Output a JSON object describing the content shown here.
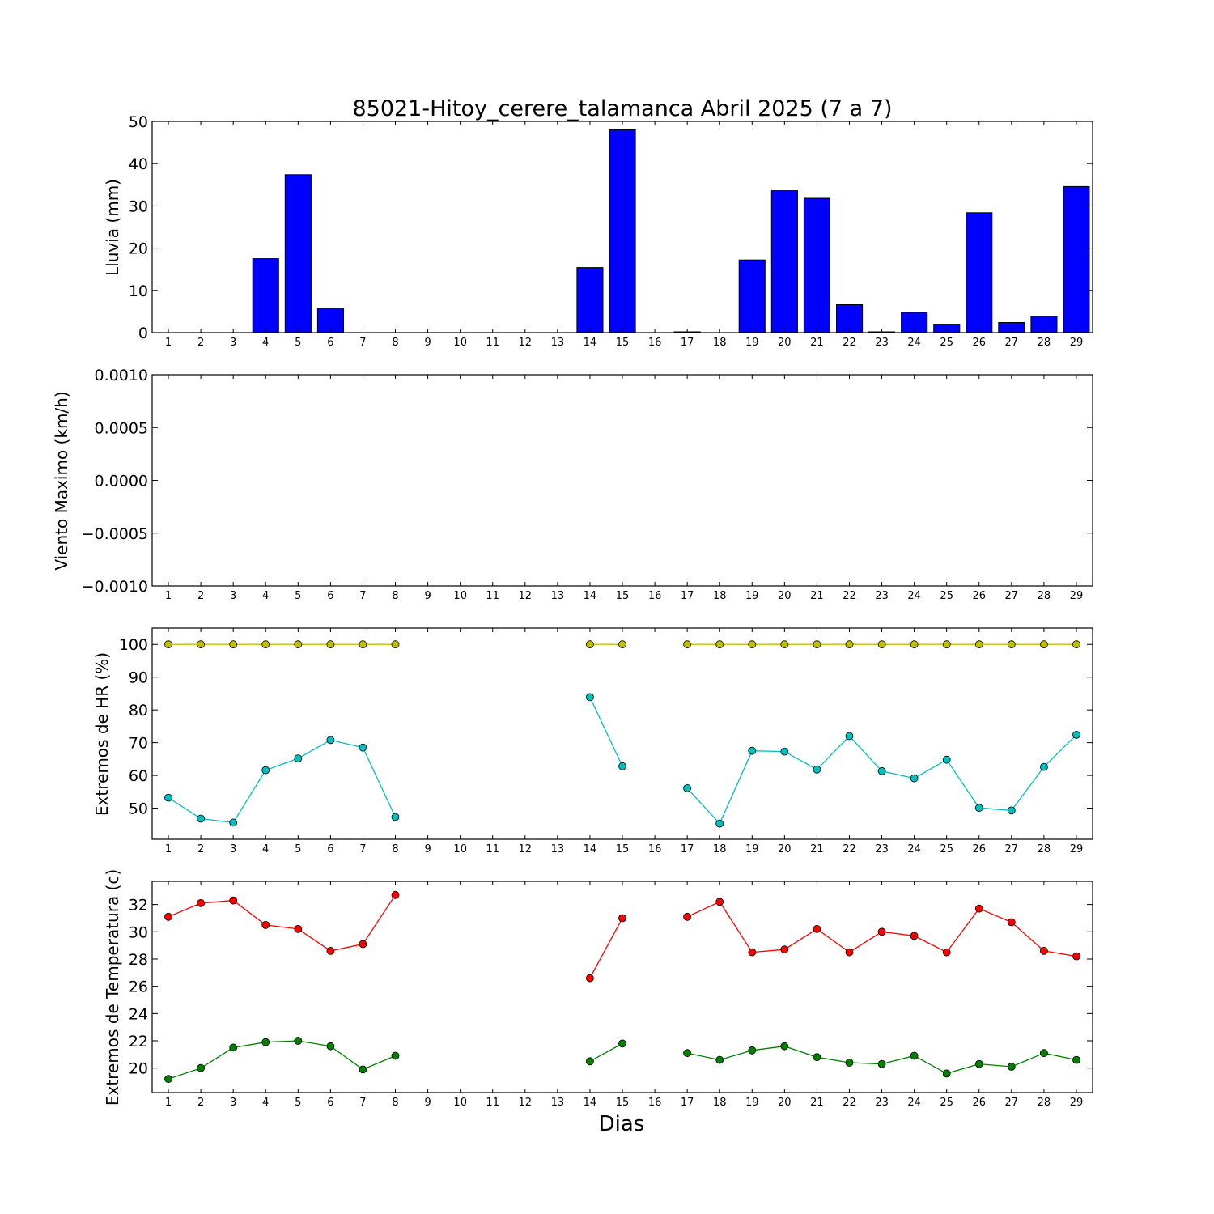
{
  "chart_data": [
    {
      "type": "bar",
      "title": "85021-Hitoy_cerere_talamanca Abril 2025  (7 a 7)",
      "ylabel": "Lluvia (mm)",
      "xlabel": "",
      "categories": [
        "1",
        "2",
        "3",
        "4",
        "5",
        "6",
        "7",
        "8",
        "9",
        "10",
        "11",
        "12",
        "13",
        "14",
        "15",
        "16",
        "17",
        "18",
        "19",
        "20",
        "21",
        "22",
        "23",
        "24",
        "25",
        "26",
        "27",
        "28",
        "29"
      ],
      "values": [
        0,
        0,
        0,
        17.5,
        37.4,
        5.8,
        0,
        0,
        0,
        0,
        0,
        0,
        0,
        15.4,
        48.0,
        0,
        0.2,
        0,
        17.2,
        33.6,
        31.8,
        6.6,
        0.2,
        4.8,
        2.0,
        28.4,
        2.4,
        3.9,
        34.6
      ],
      "ylim": [
        0,
        50
      ],
      "yticks": [
        "0",
        "10",
        "20",
        "30",
        "40",
        "50"
      ],
      "color": "#0000ff",
      "grid": false
    },
    {
      "type": "line",
      "title": "",
      "ylabel": "Viento Maximo (km/h)",
      "xlabel": "",
      "categories": [
        "1",
        "2",
        "3",
        "4",
        "5",
        "6",
        "7",
        "8",
        "9",
        "10",
        "11",
        "12",
        "13",
        "14",
        "15",
        "16",
        "17",
        "18",
        "19",
        "20",
        "21",
        "22",
        "23",
        "24",
        "25",
        "26",
        "27",
        "28",
        "29"
      ],
      "series": [],
      "ylim": [
        -0.001,
        0.001
      ],
      "yticks": [
        "−0.0010",
        "−0.0005",
        "0.0000",
        "0.0005",
        "0.0010"
      ],
      "grid": false
    },
    {
      "type": "line",
      "title": "",
      "ylabel": "Extremos de HR (%)",
      "xlabel": "",
      "categories": [
        "1",
        "2",
        "3",
        "4",
        "5",
        "6",
        "7",
        "8",
        "9",
        "10",
        "11",
        "12",
        "13",
        "14",
        "15",
        "16",
        "17",
        "18",
        "19",
        "20",
        "21",
        "22",
        "23",
        "24",
        "25",
        "26",
        "27",
        "28",
        "29"
      ],
      "series": [
        {
          "color": "#bfbf00",
          "values": [
            100,
            100,
            100,
            100,
            100,
            100,
            100,
            100,
            null,
            null,
            null,
            null,
            null,
            100,
            100,
            null,
            100,
            100,
            100,
            100,
            100,
            100,
            100,
            100,
            100,
            100,
            100,
            100,
            100
          ]
        },
        {
          "color": "#00bfbf",
          "values": [
            53.2,
            46.8,
            45.6,
            61.6,
            65.2,
            70.8,
            68.5,
            47.3,
            null,
            null,
            null,
            null,
            null,
            83.9,
            62.8,
            null,
            56.1,
            45.3,
            67.5,
            67.3,
            61.8,
            72.0,
            61.3,
            59.1,
            64.8,
            50.1,
            49.3,
            62.6,
            72.4
          ]
        }
      ],
      "ylim": [
        40.5,
        105
      ],
      "yticks": [
        "50",
        "60",
        "70",
        "80",
        "90",
        "100"
      ],
      "grid": false
    },
    {
      "type": "line",
      "title": "",
      "ylabel": "Extremos de Temperatura (c)",
      "xlabel": "Dias",
      "categories": [
        "1",
        "2",
        "3",
        "4",
        "5",
        "6",
        "7",
        "8",
        "9",
        "10",
        "11",
        "12",
        "13",
        "14",
        "15",
        "16",
        "17",
        "18",
        "19",
        "20",
        "21",
        "22",
        "23",
        "24",
        "25",
        "26",
        "27",
        "28",
        "29"
      ],
      "series": [
        {
          "color": "#ff0000",
          "values": [
            31.1,
            32.1,
            32.3,
            30.5,
            30.2,
            28.6,
            29.1,
            32.7,
            null,
            null,
            null,
            null,
            null,
            26.6,
            31.0,
            null,
            31.1,
            32.2,
            28.5,
            28.7,
            30.2,
            28.5,
            30.0,
            29.7,
            28.5,
            31.7,
            30.7,
            28.6,
            28.2
          ]
        },
        {
          "color": "#008000",
          "values": [
            19.2,
            20.0,
            21.5,
            21.9,
            22.0,
            21.6,
            19.9,
            20.9,
            null,
            null,
            null,
            null,
            null,
            20.5,
            21.8,
            null,
            21.1,
            20.6,
            21.3,
            21.6,
            20.8,
            20.4,
            20.3,
            20.9,
            19.6,
            20.3,
            20.1,
            21.1,
            20.6
          ]
        }
      ],
      "ylim": [
        18.2,
        33.7
      ],
      "yticks": [
        "20",
        "22",
        "24",
        "26",
        "28",
        "30",
        "32"
      ],
      "grid": false
    }
  ]
}
